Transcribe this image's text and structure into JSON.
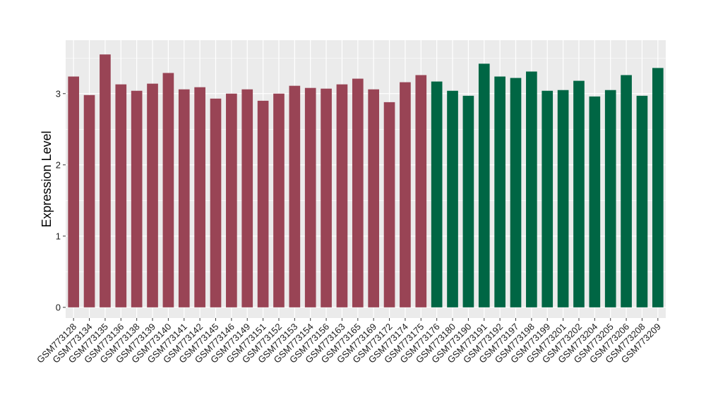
{
  "chart_data": {
    "type": "bar",
    "ylabel": "Expression Level",
    "xlabel": "",
    "ylim": [
      -0.15,
      3.75
    ],
    "yticks": [
      0,
      1,
      2,
      3
    ],
    "grid": true,
    "background": "#EBEBEB",
    "gridline_color": "#FFFFFF",
    "categories": [
      "GSM773128",
      "GSM773134",
      "GSM773135",
      "GSM773136",
      "GSM773138",
      "GSM773139",
      "GSM773140",
      "GSM773141",
      "GSM773142",
      "GSM773145",
      "GSM773146",
      "GSM773149",
      "GSM773151",
      "GSM773152",
      "GSM773153",
      "GSM773154",
      "GSM773156",
      "GSM773163",
      "GSM773165",
      "GSM773169",
      "GSM773172",
      "GSM773174",
      "GSM773175",
      "GSM773176",
      "GSM773180",
      "GSM773190",
      "GSM773191",
      "GSM773192",
      "GSM773197",
      "GSM773198",
      "GSM773199",
      "GSM773201",
      "GSM773202",
      "GSM773204",
      "GSM773205",
      "GSM773206",
      "GSM773208",
      "GSM773209"
    ],
    "values": [
      3.24,
      2.98,
      3.55,
      3.13,
      3.04,
      3.14,
      3.29,
      3.06,
      3.09,
      2.93,
      3.0,
      3.06,
      2.9,
      3.0,
      3.11,
      3.08,
      3.07,
      3.13,
      3.21,
      3.06,
      2.88,
      3.16,
      3.26,
      3.17,
      3.04,
      2.97,
      3.42,
      3.24,
      3.22,
      3.31,
      3.04,
      3.05,
      3.18,
      2.96,
      3.05,
      3.26,
      2.97,
      3.36
    ],
    "bar_colors": [
      "#994455",
      "#994455",
      "#994455",
      "#994455",
      "#994455",
      "#994455",
      "#994455",
      "#994455",
      "#994455",
      "#994455",
      "#994455",
      "#994455",
      "#994455",
      "#994455",
      "#994455",
      "#994455",
      "#994455",
      "#994455",
      "#994455",
      "#994455",
      "#994455",
      "#994455",
      "#994455",
      "#006644",
      "#006644",
      "#006644",
      "#006644",
      "#006644",
      "#006644",
      "#006644",
      "#006644",
      "#006644",
      "#006644",
      "#006644",
      "#006644",
      "#006644",
      "#006644",
      "#006644"
    ]
  }
}
